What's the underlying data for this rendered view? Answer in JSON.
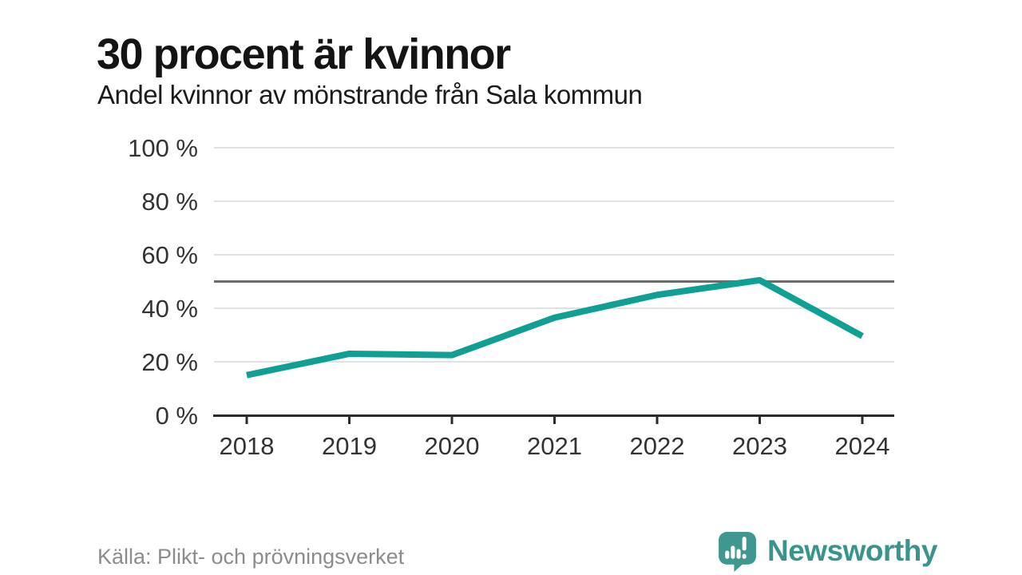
{
  "header": {
    "title": "30 procent är kvinnor",
    "subtitle": "Andel kvinnor av mönstrande från Sala kommun"
  },
  "chart_data": {
    "type": "line",
    "title": "30 procent är kvinnor",
    "subtitle": "Andel kvinnor av mönstrande från Sala kommun",
    "x": [
      "2018",
      "2019",
      "2020",
      "2021",
      "2022",
      "2023",
      "2024"
    ],
    "series": [
      {
        "name": "Andel kvinnor av mönstrande",
        "values": [
          15,
          23,
          22.5,
          36.5,
          45,
          50.5,
          29.6
        ]
      }
    ],
    "unit": "%",
    "ylim": [
      0,
      100
    ],
    "yticks": [
      0,
      20,
      40,
      60,
      80,
      100
    ],
    "ytick_suffix": " %",
    "xlabel": "",
    "ylabel": "",
    "grid": "horizontal",
    "legend": "none",
    "reference_line_value": 50,
    "colors": {
      "line": "#0FA093",
      "reference_line": "#6B6B6B",
      "gridline": "#E1E1E1",
      "axis": "#2B2B2B",
      "tick_label": "#333333"
    }
  },
  "footer": {
    "source": "Källa: Plikt- och prövningsverket",
    "logo_text": "Newsworthy",
    "logo_color": "#38948C",
    "logo_icon": "speech-bubble-bar-chart-exclamation",
    "logo_icon_color": "#3F978F"
  }
}
